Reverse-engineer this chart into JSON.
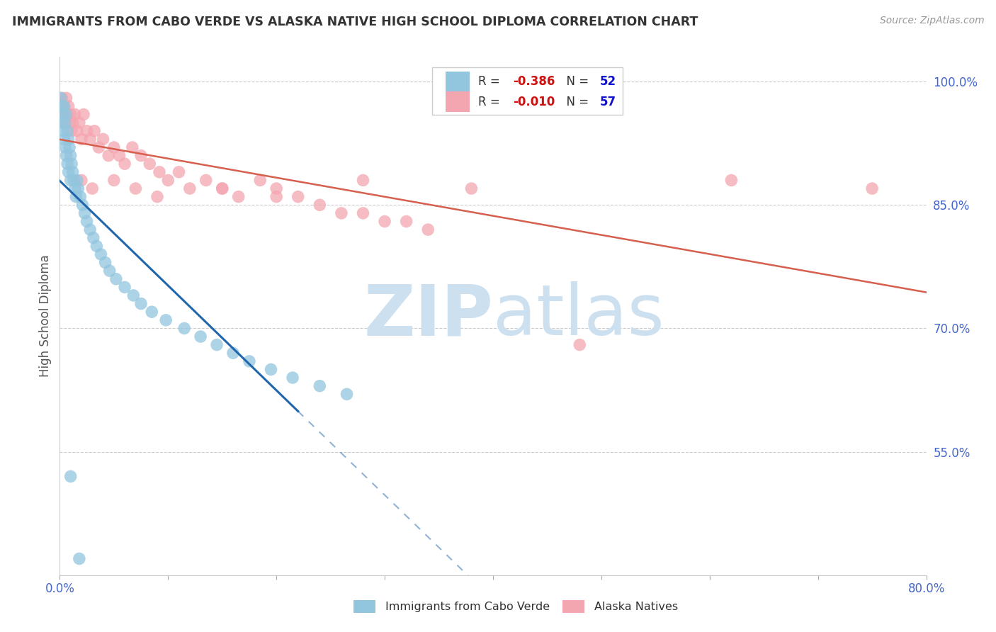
{
  "title": "IMMIGRANTS FROM CABO VERDE VS ALASKA NATIVE HIGH SCHOOL DIPLOMA CORRELATION CHART",
  "source": "Source: ZipAtlas.com",
  "ylabel": "High School Diploma",
  "xlim": [
    0.0,
    0.8
  ],
  "ylim": [
    0.4,
    1.03
  ],
  "xticks": [
    0.0,
    0.1,
    0.2,
    0.3,
    0.4,
    0.5,
    0.6,
    0.7,
    0.8
  ],
  "ytick_right": [
    0.55,
    0.7,
    0.85,
    1.0
  ],
  "ytick_right_labels": [
    "55.0%",
    "70.0%",
    "85.0%",
    "100.0%"
  ],
  "blue_R": -0.386,
  "blue_N": 52,
  "pink_R": -0.01,
  "pink_N": 57,
  "blue_color": "#92c5de",
  "pink_color": "#f4a6b0",
  "blue_line_color": "#2166ac",
  "pink_line_color": "#d6604d",
  "legend_label_blue": "Immigrants from Cabo Verde",
  "legend_label_pink": "Alaska Natives",
  "blue_scatter_x": [
    0.001,
    0.002,
    0.002,
    0.003,
    0.003,
    0.004,
    0.004,
    0.005,
    0.005,
    0.006,
    0.006,
    0.007,
    0.007,
    0.008,
    0.008,
    0.009,
    0.01,
    0.01,
    0.011,
    0.012,
    0.013,
    0.014,
    0.015,
    0.016,
    0.017,
    0.019,
    0.021,
    0.023,
    0.025,
    0.028,
    0.031,
    0.034,
    0.038,
    0.042,
    0.046,
    0.052,
    0.06,
    0.068,
    0.075,
    0.085,
    0.098,
    0.115,
    0.13,
    0.145,
    0.16,
    0.175,
    0.195,
    0.215,
    0.24,
    0.265,
    0.01,
    0.018
  ],
  "blue_scatter_y": [
    0.98,
    0.97,
    0.95,
    0.96,
    0.94,
    0.97,
    0.93,
    0.95,
    0.92,
    0.96,
    0.91,
    0.94,
    0.9,
    0.93,
    0.89,
    0.92,
    0.91,
    0.88,
    0.9,
    0.89,
    0.88,
    0.87,
    0.86,
    0.88,
    0.87,
    0.86,
    0.85,
    0.84,
    0.83,
    0.82,
    0.81,
    0.8,
    0.79,
    0.78,
    0.77,
    0.76,
    0.75,
    0.74,
    0.73,
    0.72,
    0.71,
    0.7,
    0.69,
    0.68,
    0.67,
    0.66,
    0.65,
    0.64,
    0.63,
    0.62,
    0.52,
    0.42
  ],
  "pink_scatter_x": [
    0.001,
    0.002,
    0.003,
    0.004,
    0.005,
    0.006,
    0.007,
    0.008,
    0.009,
    0.01,
    0.011,
    0.012,
    0.014,
    0.016,
    0.018,
    0.02,
    0.022,
    0.025,
    0.028,
    0.032,
    0.036,
    0.04,
    0.045,
    0.05,
    0.055,
    0.06,
    0.067,
    0.075,
    0.083,
    0.092,
    0.1,
    0.11,
    0.12,
    0.135,
    0.15,
    0.165,
    0.185,
    0.2,
    0.22,
    0.24,
    0.26,
    0.28,
    0.3,
    0.32,
    0.34,
    0.02,
    0.03,
    0.05,
    0.07,
    0.09,
    0.15,
    0.2,
    0.28,
    0.38,
    0.48,
    0.62,
    0.75
  ],
  "pink_scatter_y": [
    0.97,
    0.98,
    0.96,
    0.97,
    0.95,
    0.98,
    0.96,
    0.97,
    0.95,
    0.96,
    0.94,
    0.95,
    0.96,
    0.94,
    0.95,
    0.93,
    0.96,
    0.94,
    0.93,
    0.94,
    0.92,
    0.93,
    0.91,
    0.92,
    0.91,
    0.9,
    0.92,
    0.91,
    0.9,
    0.89,
    0.88,
    0.89,
    0.87,
    0.88,
    0.87,
    0.86,
    0.88,
    0.87,
    0.86,
    0.85,
    0.84,
    0.84,
    0.83,
    0.83,
    0.82,
    0.88,
    0.87,
    0.88,
    0.87,
    0.86,
    0.87,
    0.86,
    0.88,
    0.87,
    0.68,
    0.88,
    0.87
  ],
  "watermark_zip": "ZIP",
  "watermark_atlas": "atlas",
  "watermark_color": "#cce0f0",
  "background_color": "#ffffff",
  "grid_color": "#cccccc"
}
